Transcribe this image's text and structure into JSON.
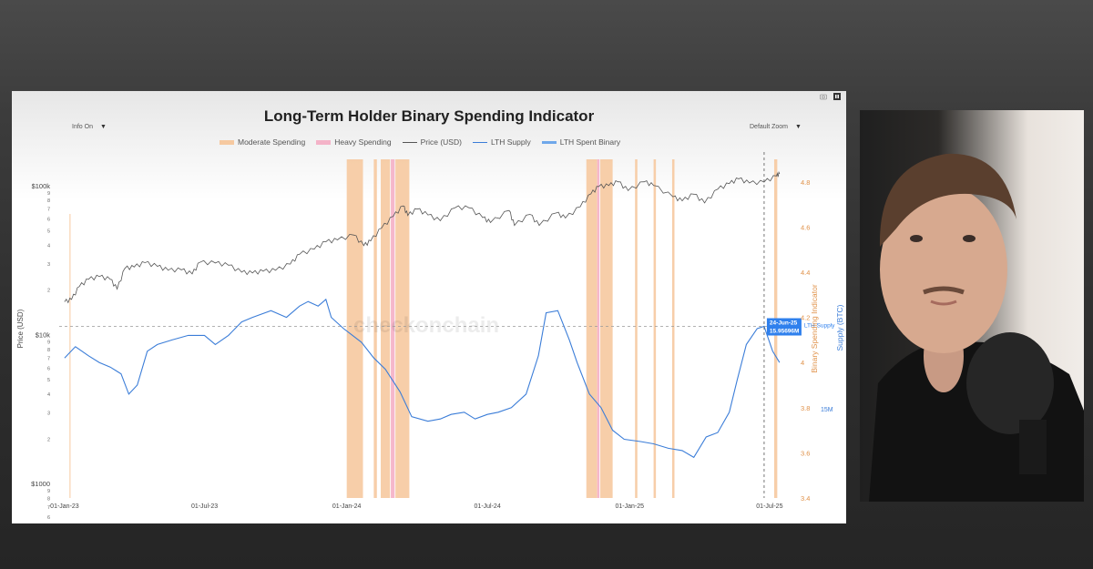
{
  "chart_data": {
    "type": "line",
    "title": "Long-Term Holder Binary Spending Indicator",
    "controls": {
      "left_dropdown": "Info On",
      "right_dropdown": "Default Zoom"
    },
    "legend": [
      "Moderate Spending",
      "Heavy Spending",
      "Price (USD)",
      "LTH Supply",
      "LTH Spent Binary"
    ],
    "colors": {
      "moderate": "#f6c9a0",
      "heavy": "#f4b3c8",
      "price": "#555555",
      "lth_supply": "#3b7dd8",
      "spent_binary": "#6fa8ea",
      "right_axis": "#e0924a"
    },
    "x_ticks": [
      "01-Jan-23",
      "01-Jul-23",
      "01-Jan-24",
      "01-Jul-24",
      "01-Jan-25",
      "01-Jul-25"
    ],
    "x_range": [
      "2022-12-25",
      "2025-07-20"
    ],
    "y_left": {
      "label": "Price (USD)",
      "scale": "log",
      "range": [
        800,
        150000
      ],
      "ticks": [
        "$1000",
        "$10k",
        "$100k"
      ]
    },
    "y_right_inner": {
      "label": "Binary Spending Indicator",
      "range": [
        3.4,
        4.9
      ],
      "ticks": [
        "3.4",
        "3.6",
        "3.8",
        "4",
        "4.2",
        "4.4",
        "4.6",
        "4.8"
      ]
    },
    "y_right_outer": {
      "label": "Supply (BTC)",
      "ticks": [
        "15M"
      ]
    },
    "watermark": "checkonchain",
    "crosshair": {
      "date": "24-Jun-25",
      "value": "15.95696M",
      "series_label": "LTH Supply"
    },
    "price_series": [
      [
        "2023-01-01",
        16600
      ],
      [
        "2023-01-10",
        17200
      ],
      [
        "2023-01-20",
        21000
      ],
      [
        "2023-02-01",
        23500
      ],
      [
        "2023-02-15",
        24500
      ],
      [
        "2023-03-01",
        23500
      ],
      [
        "2023-03-10",
        20200
      ],
      [
        "2023-03-20",
        27800
      ],
      [
        "2023-04-01",
        28400
      ],
      [
        "2023-04-15",
        30400
      ],
      [
        "2023-05-01",
        28700
      ],
      [
        "2023-05-15",
        27000
      ],
      [
        "2023-06-01",
        27200
      ],
      [
        "2023-06-15",
        25500
      ],
      [
        "2023-06-25",
        30500
      ],
      [
        "2023-07-15",
        30200
      ],
      [
        "2023-08-01",
        29200
      ],
      [
        "2023-08-18",
        26200
      ],
      [
        "2023-09-01",
        25900
      ],
      [
        "2023-09-15",
        26600
      ],
      [
        "2023-10-01",
        27000
      ],
      [
        "2023-10-20",
        29700
      ],
      [
        "2023-11-01",
        34600
      ],
      [
        "2023-11-20",
        37400
      ],
      [
        "2023-12-05",
        41900
      ],
      [
        "2023-12-20",
        43200
      ],
      [
        "2024-01-10",
        46500
      ],
      [
        "2024-01-23",
        39500
      ],
      [
        "2024-02-01",
        42500
      ],
      [
        "2024-02-15",
        51800
      ],
      [
        "2024-03-01",
        62000
      ],
      [
        "2024-03-14",
        73000
      ],
      [
        "2024-03-20",
        63000
      ],
      [
        "2024-04-01",
        69500
      ],
      [
        "2024-04-15",
        63500
      ],
      [
        "2024-05-01",
        58000
      ],
      [
        "2024-05-20",
        71000
      ],
      [
        "2024-06-07",
        71000
      ],
      [
        "2024-06-25",
        61000
      ],
      [
        "2024-07-05",
        56500
      ],
      [
        "2024-07-29",
        68000
      ],
      [
        "2024-08-05",
        54000
      ],
      [
        "2024-08-25",
        64000
      ],
      [
        "2024-09-06",
        54000
      ],
      [
        "2024-09-28",
        65500
      ],
      [
        "2024-10-10",
        60500
      ],
      [
        "2024-10-29",
        72000
      ],
      [
        "2024-11-12",
        88000
      ],
      [
        "2024-11-22",
        98500
      ],
      [
        "2024-12-05",
        100000
      ],
      [
        "2024-12-17",
        106000
      ],
      [
        "2024-12-30",
        92500
      ],
      [
        "2025-01-20",
        106000
      ],
      [
        "2025-02-01",
        100000
      ],
      [
        "2025-02-26",
        84000
      ],
      [
        "2025-03-10",
        79000
      ],
      [
        "2025-03-25",
        87500
      ],
      [
        "2025-04-08",
        76500
      ],
      [
        "2025-04-25",
        94500
      ],
      [
        "2025-05-10",
        103000
      ],
      [
        "2025-05-22",
        111000
      ],
      [
        "2025-06-05",
        104000
      ],
      [
        "2025-06-24",
        105500
      ],
      [
        "2025-07-10",
        116000
      ],
      [
        "2025-07-14",
        120000
      ]
    ],
    "lth_supply_series": [
      [
        "2023-01-01",
        4.02
      ],
      [
        "2023-01-15",
        4.07
      ],
      [
        "2023-02-01",
        4.03
      ],
      [
        "2023-02-15",
        4.0
      ],
      [
        "2023-03-01",
        3.98
      ],
      [
        "2023-03-15",
        3.95
      ],
      [
        "2023-03-25",
        3.86
      ],
      [
        "2023-04-05",
        3.9
      ],
      [
        "2023-04-18",
        4.05
      ],
      [
        "2023-05-01",
        4.08
      ],
      [
        "2023-05-20",
        4.1
      ],
      [
        "2023-06-10",
        4.12
      ],
      [
        "2023-07-01",
        4.12
      ],
      [
        "2023-07-15",
        4.08
      ],
      [
        "2023-08-01",
        4.12
      ],
      [
        "2023-08-18",
        4.18
      ],
      [
        "2023-09-01",
        4.2
      ],
      [
        "2023-09-25",
        4.23
      ],
      [
        "2023-10-15",
        4.2
      ],
      [
        "2023-11-01",
        4.25
      ],
      [
        "2023-11-12",
        4.27
      ],
      [
        "2023-11-25",
        4.25
      ],
      [
        "2023-12-05",
        4.28
      ],
      [
        "2023-12-12",
        4.2
      ],
      [
        "2023-12-28",
        4.15
      ],
      [
        "2024-01-20",
        4.09
      ],
      [
        "2024-02-05",
        4.02
      ],
      [
        "2024-02-20",
        3.97
      ],
      [
        "2024-03-10",
        3.87
      ],
      [
        "2024-03-25",
        3.76
      ],
      [
        "2024-04-15",
        3.74
      ],
      [
        "2024-05-01",
        3.75
      ],
      [
        "2024-05-15",
        3.77
      ],
      [
        "2024-06-01",
        3.78
      ],
      [
        "2024-06-15",
        3.75
      ],
      [
        "2024-07-01",
        3.77
      ],
      [
        "2024-07-15",
        3.78
      ],
      [
        "2024-08-01",
        3.8
      ],
      [
        "2024-08-20",
        3.86
      ],
      [
        "2024-09-05",
        4.03
      ],
      [
        "2024-09-15",
        4.22
      ],
      [
        "2024-09-30",
        4.23
      ],
      [
        "2024-10-15",
        4.1
      ],
      [
        "2024-10-25",
        4.0
      ],
      [
        "2024-11-10",
        3.86
      ],
      [
        "2024-11-25",
        3.8
      ],
      [
        "2024-12-10",
        3.7
      ],
      [
        "2024-12-25",
        3.66
      ],
      [
        "2025-01-15",
        3.65
      ],
      [
        "2025-02-01",
        3.64
      ],
      [
        "2025-02-20",
        3.62
      ],
      [
        "2025-03-10",
        3.61
      ],
      [
        "2025-03-25",
        3.58
      ],
      [
        "2025-04-10",
        3.67
      ],
      [
        "2025-04-25",
        3.69
      ],
      [
        "2025-05-10",
        3.78
      ],
      [
        "2025-05-20",
        3.92
      ],
      [
        "2025-06-01",
        4.08
      ],
      [
        "2025-06-15",
        4.15
      ],
      [
        "2025-06-24",
        4.16
      ],
      [
        "2025-07-05",
        4.05
      ],
      [
        "2025-07-14",
        4.0
      ]
    ],
    "moderate_spending_periods": [
      [
        "2024-01-01",
        "2024-01-22"
      ],
      [
        "2024-02-05",
        "2024-02-09"
      ],
      [
        "2024-02-14",
        "2024-02-26"
      ],
      [
        "2024-03-04",
        "2024-03-22"
      ],
      [
        "2024-11-06",
        "2024-11-20"
      ],
      [
        "2024-11-24",
        "2024-12-10"
      ],
      [
        "2025-01-08",
        "2025-01-11"
      ],
      [
        "2025-02-01",
        "2025-02-04"
      ],
      [
        "2025-02-25",
        "2025-02-28"
      ],
      [
        "2025-07-07",
        "2025-07-11"
      ]
    ],
    "heavy_spending_periods": [
      [
        "2024-02-27",
        "2024-03-03"
      ],
      [
        "2024-11-20",
        "2024-11-23"
      ]
    ],
    "thin_markers": [
      "2023-01-08"
    ]
  }
}
